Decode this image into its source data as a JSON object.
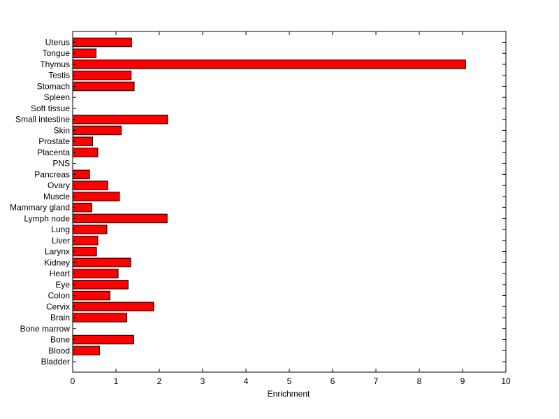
{
  "chart_data": {
    "type": "bar",
    "orientation": "horizontal",
    "title": "",
    "xlabel": "Enrichment",
    "ylabel": "",
    "xlim": [
      0,
      10
    ],
    "x_ticks": [
      0,
      1,
      2,
      3,
      4,
      5,
      6,
      7,
      8,
      9,
      10
    ],
    "categories": [
      "Bladder",
      "Blood",
      "Bone",
      "Bone marrow",
      "Brain",
      "Cervix",
      "Colon",
      "Eye",
      "Heart",
      "Kidney",
      "Larynx",
      "Liver",
      "Lung",
      "Lymph node",
      "Mammary gland",
      "Muscle",
      "Ovary",
      "Pancreas",
      "PNS",
      "Placenta",
      "Prostate",
      "Skin",
      "Small intestine",
      "Soft tissue",
      "Spleen",
      "Stomach",
      "Testis",
      "Thymus",
      "Tongue",
      "Uterus"
    ],
    "values": [
      0,
      0.62,
      1.41,
      0,
      1.25,
      1.87,
      0.86,
      1.28,
      1.05,
      1.34,
      0.55,
      0.58,
      0.79,
      2.18,
      0.44,
      1.08,
      0.81,
      0.39,
      0,
      0.58,
      0.46,
      1.12,
      2.19,
      0,
      0,
      1.42,
      1.35,
      9.07,
      0.54,
      1.36
    ],
    "bar_color": "#ff0000",
    "bar_edge_color": "#000000",
    "grid": false,
    "legend": "none"
  }
}
